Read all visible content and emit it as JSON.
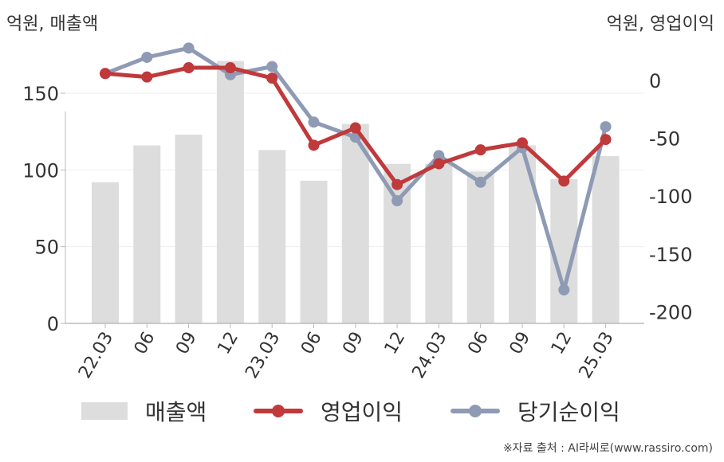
{
  "unit_left": "억원, 매출액",
  "unit_right": "억원, 영업이익",
  "source": "※자료 출처 : AI라씨로(www.rassiro.com)",
  "colors": {
    "revenue": "#dddddd",
    "operating": "#c0393b",
    "net": "#8f9ab4",
    "axis": "#bbbbbb",
    "grid": "#eeeeee"
  },
  "legend": {
    "revenue": "매출액",
    "operating": "영업이익",
    "net": "당기순이익"
  },
  "chart_data": {
    "type": "bar",
    "categories": [
      "22.03",
      "06",
      "09",
      "12",
      "23.03",
      "06",
      "09",
      "12",
      "24.03",
      "06",
      "09",
      "12",
      "25.03"
    ],
    "y_left": {
      "ylim": [
        0,
        190
      ],
      "ticks": [
        0,
        50,
        100,
        150
      ]
    },
    "y_right": {
      "ylim": [
        -210,
        42
      ],
      "ticks": [
        0,
        -50,
        -100,
        -150,
        -200
      ]
    },
    "series": [
      {
        "name": "매출액",
        "type": "bar",
        "axis": "left",
        "values": [
          92,
          116,
          123,
          171,
          113,
          93,
          130,
          104,
          104,
          99,
          116,
          94,
          109
        ]
      },
      {
        "name": "영업이익",
        "type": "line",
        "axis": "right",
        "values": [
          6,
          3,
          11,
          11,
          2,
          -56,
          -41,
          -90,
          -72,
          -60,
          -54,
          -87,
          -51
        ]
      },
      {
        "name": "당기순이익",
        "type": "line",
        "axis": "right",
        "values": [
          6,
          20,
          28,
          5,
          12,
          -36,
          -49,
          -104,
          -65,
          -88,
          -58,
          -181,
          -40
        ]
      }
    ]
  }
}
